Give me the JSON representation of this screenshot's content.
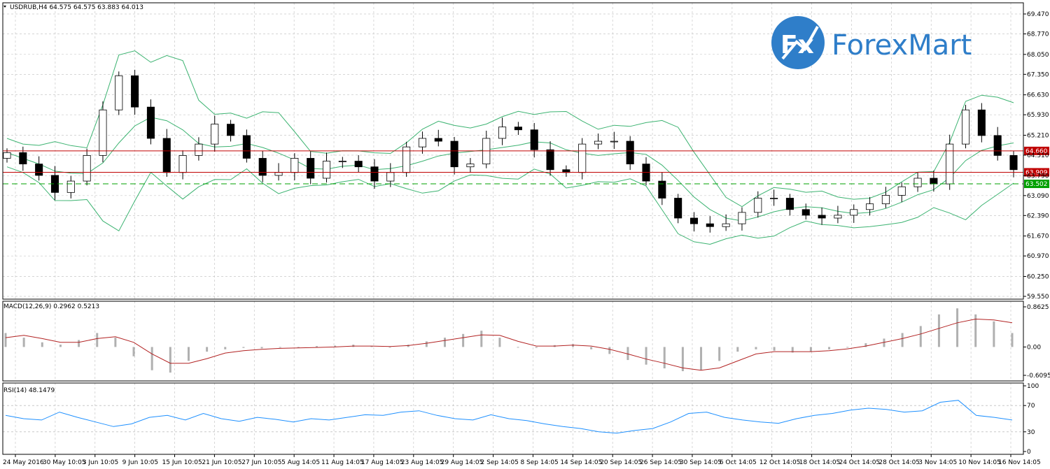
{
  "main_panel": {
    "header": "USDRUB,H4  64.575 64.575 63.883 64.013",
    "y_ticks": [
      "69.470",
      "68.770",
      "68.050",
      "67.350",
      "66.630",
      "65.930",
      "65.210",
      "64.510",
      "63.790",
      "63.090",
      "62.390",
      "61.670",
      "60.970",
      "60.250",
      "59.550"
    ],
    "price_lines": [
      {
        "label": "64.660",
        "value": 64.66,
        "color": "#c00000",
        "style": "solid"
      },
      {
        "label": "63.909",
        "value": 63.909,
        "color": "#c00000",
        "style": "solid"
      },
      {
        "label": "63.502",
        "value": 63.502,
        "color": "#00a000",
        "style": "dashed"
      }
    ]
  },
  "macd_panel": {
    "header": "MACD(12,26,9) 0.2962 0.5213",
    "y_ticks": [
      "0.8625",
      "0.00",
      "-0.6095"
    ]
  },
  "rsi_panel": {
    "header": "RSI(14) 48.1479",
    "y_ticks": [
      "100",
      "70",
      "30",
      "0"
    ]
  },
  "x_ticks": [
    "24 May 2016",
    "30 May 10:05",
    "3 Jun 10:05",
    "9 Jun 10:05",
    "15 Jun 10:05",
    "21 Jun 10:05",
    "27 Jun 10:05",
    "5 Aug 14:05",
    "11 Aug 14:05",
    "17 Aug 14:05",
    "23 Aug 14:05",
    "29 Aug 14:05",
    "2 Sep 14:05",
    "8 Sep 14:05",
    "14 Sep 14:05",
    "20 Sep 14:05",
    "26 Sep 14:05",
    "30 Sep 14:05",
    "6 Oct 14:05",
    "12 Oct 14:05",
    "18 Oct 14:05",
    "24 Oct 14:05",
    "28 Oct 14:05",
    "3 Nov 14:05",
    "10 Nov 14:05",
    "16 Nov 14:05"
  ],
  "logo": {
    "mark": "Fx",
    "text": "ForexMart",
    "color": "#2f7ec9"
  },
  "colors": {
    "bollinger": "#3cb371",
    "macd_hist": "#b0b0b0",
    "macd_signal": "#b22222",
    "rsi": "#1e90ff",
    "grid": "#c8c8c8"
  },
  "chart_data": [
    {
      "type": "candlestick",
      "title": "USDRUB,H4",
      "ylim": [
        59.55,
        69.47
      ],
      "close_series": [
        64.6,
        64.2,
        63.8,
        63.2,
        63.6,
        64.5,
        66.1,
        67.3,
        66.2,
        65.1,
        63.9,
        64.5,
        64.9,
        65.6,
        65.2,
        64.4,
        63.8,
        63.9,
        64.4,
        63.7,
        64.3,
        64.3,
        64.1,
        63.6,
        63.9,
        64.8,
        65.1,
        65.0,
        64.1,
        64.2,
        65.1,
        65.5,
        65.4,
        64.7,
        64.0,
        63.9,
        64.9,
        65.0,
        65.0,
        64.2,
        63.6,
        63.0,
        62.3,
        62.1,
        62.0,
        62.1,
        62.5,
        63.0,
        63.0,
        62.6,
        62.4,
        62.3,
        62.4,
        62.6,
        62.8,
        63.1,
        63.4,
        63.7,
        63.5,
        64.9,
        66.1,
        65.2,
        64.5,
        64.0
      ],
      "overlay": "Bollinger Bands"
    },
    {
      "type": "bar",
      "title": "MACD(12,26,9)",
      "ylim": [
        -0.6095,
        0.8625
      ],
      "series": [
        {
          "name": "MACD",
          "values": [
            0.3,
            0.2,
            0.1,
            0.05,
            0.15,
            0.3,
            0.2,
            -0.2,
            -0.5,
            -0.55,
            -0.3,
            -0.1,
            -0.05,
            -0.02,
            -0.03,
            -0.01,
            0.0,
            0.02,
            0.03,
            0.05,
            0.02,
            0.0,
            0.05,
            0.12,
            0.2,
            0.28,
            0.35,
            0.2,
            0.0,
            -0.02,
            0.04,
            0.06,
            -0.05,
            -0.15,
            -0.28,
            -0.38,
            -0.46,
            -0.52,
            -0.5,
            -0.3,
            -0.1,
            -0.05,
            -0.08,
            -0.12,
            -0.1,
            -0.05,
            0.0,
            0.08,
            0.18,
            0.3,
            0.45,
            0.7,
            0.83,
            0.7,
            0.55,
            0.3
          ]
        },
        {
          "name": "Signal",
          "values": [
            0.2,
            0.25,
            0.18,
            0.1,
            0.1,
            0.18,
            0.22,
            0.1,
            -0.15,
            -0.35,
            -0.35,
            -0.25,
            -0.13,
            -0.08,
            -0.05,
            -0.03,
            -0.02,
            -0.01,
            0.0,
            0.02,
            0.02,
            0.01,
            0.03,
            0.08,
            0.14,
            0.2,
            0.26,
            0.25,
            0.12,
            0.02,
            0.02,
            0.04,
            0.02,
            -0.05,
            -0.15,
            -0.26,
            -0.35,
            -0.45,
            -0.5,
            -0.45,
            -0.3,
            -0.15,
            -0.1,
            -0.1,
            -0.1,
            -0.08,
            -0.04,
            0.02,
            0.1,
            0.18,
            0.28,
            0.4,
            0.52,
            0.6,
            0.58,
            0.52
          ]
        }
      ]
    },
    {
      "type": "line",
      "title": "RSI(14)",
      "ylim": [
        0,
        100
      ],
      "series": [
        {
          "name": "RSI",
          "values": [
            55,
            50,
            48,
            60,
            52,
            45,
            38,
            42,
            52,
            55,
            48,
            58,
            50,
            46,
            52,
            49,
            45,
            50,
            48,
            52,
            56,
            55,
            60,
            62,
            55,
            50,
            48,
            56,
            50,
            47,
            42,
            38,
            35,
            30,
            28,
            32,
            35,
            45,
            58,
            60,
            52,
            48,
            45,
            43,
            50,
            55,
            58,
            63,
            66,
            64,
            60,
            62,
            75,
            78,
            55,
            52,
            48
          ]
        }
      ]
    }
  ]
}
